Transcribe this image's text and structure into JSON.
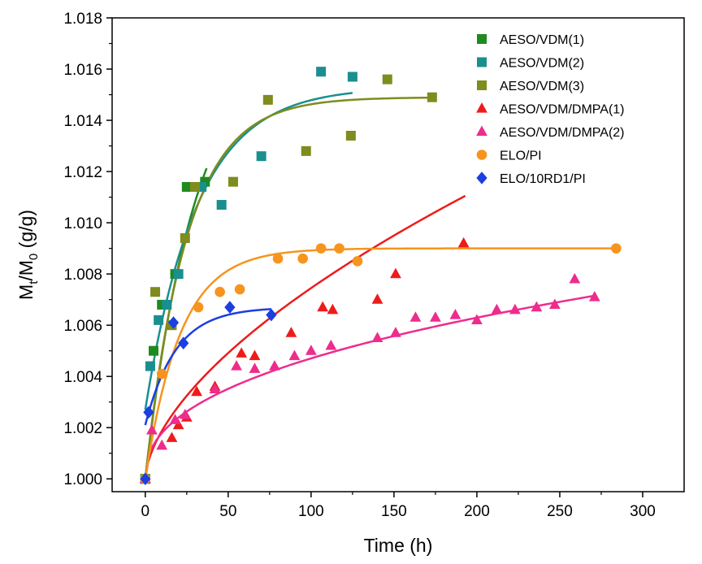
{
  "chart_data": {
    "type": "scatter",
    "title": "",
    "xlabel": "Time (h)",
    "ylabel_main": "M",
    "ylabel_sub1": "t",
    "ylabel_mid": "/M",
    "ylabel_sub2": "0",
    "ylabel_unit": " (g/g)",
    "xlim": [
      -20,
      325
    ],
    "ylim": [
      0.9995,
      1.018
    ],
    "xticks": [
      0,
      50,
      100,
      150,
      200,
      250,
      300
    ],
    "yticks": [
      1.0,
      1.002,
      1.004,
      1.006,
      1.008,
      1.01,
      1.012,
      1.014,
      1.016,
      1.018
    ],
    "xtick_labels": [
      "0",
      "50",
      "100",
      "150",
      "200",
      "250",
      "300"
    ],
    "ytick_labels": [
      "1.000",
      "1.002",
      "1.004",
      "1.006",
      "1.008",
      "1.010",
      "1.012",
      "1.014",
      "1.016",
      "1.018"
    ],
    "legend_position": "top-right",
    "grid": false,
    "series": [
      {
        "name": "AESO/VDM(1)",
        "color": "#1f8a1f",
        "marker": "square",
        "x": [
          0,
          5,
          10,
          18,
          25,
          30,
          36
        ],
        "y": [
          1.0,
          1.005,
          1.0068,
          1.008,
          1.0114,
          1.0114,
          1.0116
        ],
        "fit": {
          "y0": 1.0,
          "A": 0.0172,
          "k": 0.033,
          "xmax": 37
        }
      },
      {
        "name": "AESO/VDM(2)",
        "color": "#1a8f8f",
        "marker": "square",
        "x": [
          0,
          3,
          8,
          13,
          20,
          34,
          46,
          70,
          106,
          125
        ],
        "y": [
          1.0,
          1.0044,
          1.0062,
          1.0068,
          1.008,
          1.0114,
          1.0107,
          1.0126,
          1.0159,
          1.0157
        ],
        "fit": {
          "y0": 1.0027,
          "A": 0.0126,
          "k": 0.032,
          "xmax": 125
        }
      },
      {
        "name": "AESO/VDM(3)",
        "color": "#7f8c1e",
        "marker": "square",
        "x": [
          0,
          6,
          16,
          24,
          30,
          53,
          74,
          97,
          124,
          146,
          173
        ],
        "y": [
          1.0,
          1.0073,
          1.006,
          1.0094,
          1.0114,
          1.0116,
          1.0148,
          1.0128,
          1.0134,
          1.0156,
          1.0149
        ],
        "fit": {
          "y0": 1.0,
          "A": 0.0149,
          "k": 0.04,
          "xmax": 173
        }
      },
      {
        "name": "AESO/VDM/DMPA(1)",
        "color": "#ee1b1b",
        "marker": "triangle",
        "x": [
          0,
          16,
          20,
          25,
          31,
          42,
          58,
          66,
          88,
          107,
          113,
          140,
          151,
          192
        ],
        "y": [
          1.0,
          1.0016,
          1.0021,
          1.0024,
          1.0034,
          1.0036,
          1.0049,
          1.0048,
          1.0057,
          1.0067,
          1.0066,
          1.007,
          1.008,
          1.0092
        ],
        "fit": {
          "a": 0.00047,
          "b": 0.6,
          "xmax": 193
        }
      },
      {
        "name": "AESO/VDM/DMPA(2)",
        "color": "#ee2c8e",
        "marker": "triangle",
        "x": [
          0,
          4,
          10,
          18,
          24,
          42,
          55,
          66,
          78,
          90,
          100,
          112,
          140,
          151,
          163,
          175,
          187,
          200,
          212,
          223,
          236,
          247,
          259,
          271
        ],
        "y": [
          1.0,
          1.0019,
          1.0013,
          1.0023,
          1.0025,
          1.0035,
          1.0044,
          1.0043,
          1.0044,
          1.0048,
          1.005,
          1.0052,
          1.0055,
          1.0057,
          1.0063,
          1.0063,
          1.0064,
          1.0062,
          1.0066,
          1.0066,
          1.0067,
          1.0068,
          1.0078,
          1.0071
        ],
        "fit": {
          "a": 0.00068,
          "b": 0.42,
          "xmax": 272
        }
      },
      {
        "name": "ELO/PI",
        "color": "#f7941d",
        "marker": "circle",
        "x": [
          0,
          10,
          32,
          45,
          57,
          80,
          95,
          106,
          117,
          128,
          284
        ],
        "y": [
          1.0,
          1.0041,
          1.0067,
          1.0073,
          1.0074,
          1.0086,
          1.0086,
          1.009,
          1.009,
          1.0085,
          1.009
        ],
        "fit": {
          "y0": 1.0,
          "A": 0.009,
          "k": 0.047,
          "xmax": 285
        }
      },
      {
        "name": "ELO/10RD1/PI",
        "color": "#1b3fe0",
        "marker": "diamond",
        "x": [
          0,
          2,
          17,
          23,
          51,
          76
        ],
        "y": [
          1.0,
          1.0026,
          1.0061,
          1.0053,
          1.0067,
          1.0064
        ],
        "fit": {
          "y0": 1.0021,
          "A": 0.0046,
          "k": 0.055,
          "xmax": 76
        }
      }
    ]
  }
}
